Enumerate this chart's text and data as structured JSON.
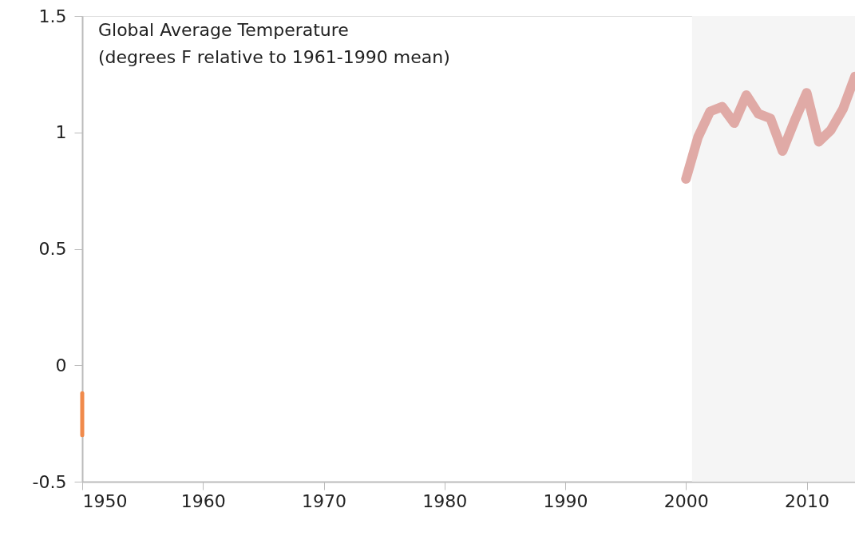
{
  "chart_data": {
    "type": "line",
    "title": "Global Average Temperature",
    "subtitle": "(degrees F relative to 1961-1990 mean)",
    "series": [
      {
        "color": "#f08a4b",
        "x": [
          1950,
          1950
        ],
        "values": [
          -0.12,
          -0.3
        ]
      },
      {
        "color": "#e0aaa6",
        "x": [
          2000,
          2001,
          2002,
          2003,
          2004,
          2005,
          2006,
          2007,
          2008,
          2009,
          2010,
          2011,
          2012,
          2013,
          2014
        ],
        "values": [
          0.8,
          0.98,
          1.09,
          1.11,
          1.04,
          1.16,
          1.08,
          1.06,
          0.92,
          1.05,
          1.17,
          0.96,
          1.01,
          1.1,
          1.24
        ]
      }
    ],
    "xlim": [
      1950,
      2014
    ],
    "xticks": [
      1950,
      1960,
      1970,
      1980,
      1990,
      2000,
      2010
    ],
    "ylim": [
      -0.5,
      1.5
    ],
    "yticks": [
      -0.5,
      0,
      0.5,
      1,
      1.5
    ],
    "bands": [
      {
        "axis": "x",
        "from": 2000.5,
        "to": 2014,
        "color": "#f5f5f5"
      }
    ],
    "grid": false,
    "marker": "none",
    "line_style": "solid"
  }
}
